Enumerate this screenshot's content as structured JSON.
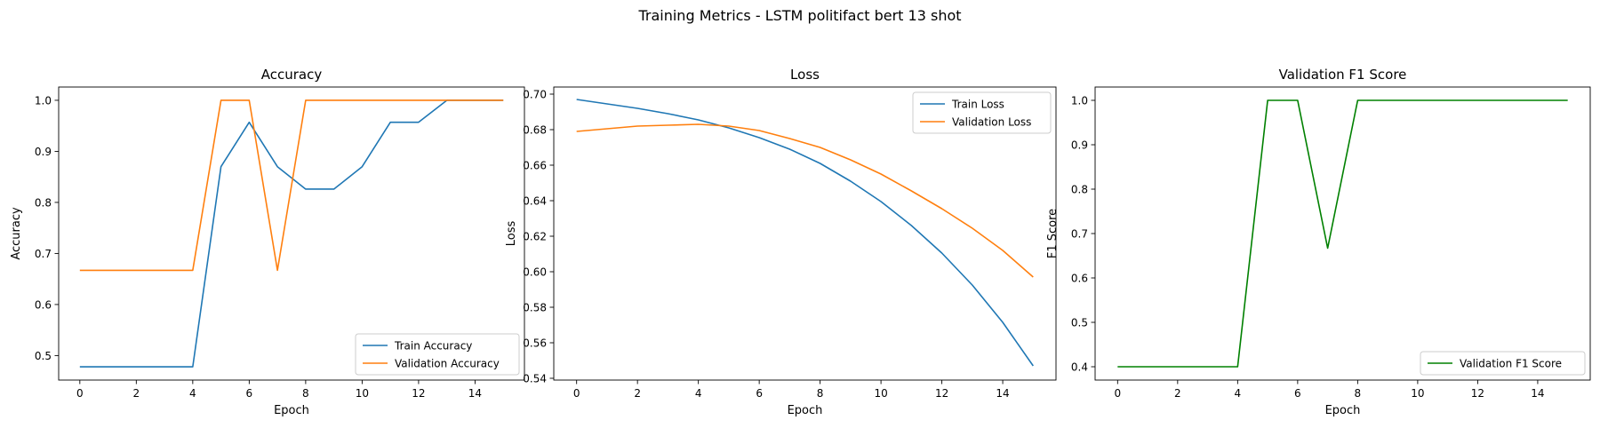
{
  "suptitle": "Training Metrics - LSTM politifact bert 13 shot",
  "chart_data": [
    {
      "type": "line",
      "title": "Accuracy",
      "xlabel": "Epoch",
      "ylabel": "Accuracy",
      "xlim": [
        -0.75,
        15.75
      ],
      "ylim": [
        0.452,
        1.026
      ],
      "xticks": [
        0,
        2,
        4,
        6,
        8,
        10,
        12,
        14
      ],
      "yticks": [
        0.5,
        0.6,
        0.7,
        0.8,
        0.9,
        1.0
      ],
      "ytick_labels": [
        "0.5",
        "0.6",
        "0.7",
        "0.8",
        "0.9",
        "1.0"
      ],
      "legend_position": "lower-right",
      "x": [
        0,
        1,
        2,
        3,
        4,
        5,
        6,
        7,
        8,
        9,
        10,
        11,
        12,
        13,
        14,
        15
      ],
      "series": [
        {
          "name": "Train Accuracy",
          "color": "#1f77b4",
          "values": [
            0.478,
            0.478,
            0.478,
            0.478,
            0.478,
            0.87,
            0.957,
            0.87,
            0.826,
            0.826,
            0.87,
            0.957,
            0.957,
            1.0,
            1.0,
            1.0
          ]
        },
        {
          "name": "Validation Accuracy",
          "color": "#ff7f0e",
          "values": [
            0.667,
            0.667,
            0.667,
            0.667,
            0.667,
            1.0,
            1.0,
            0.667,
            1.0,
            1.0,
            1.0,
            1.0,
            1.0,
            1.0,
            1.0,
            1.0
          ]
        }
      ]
    },
    {
      "type": "line",
      "title": "Loss",
      "xlabel": "Epoch",
      "ylabel": "Loss",
      "xlim": [
        -0.75,
        15.75
      ],
      "ylim": [
        0.539,
        0.704
      ],
      "xticks": [
        0,
        2,
        4,
        6,
        8,
        10,
        12,
        14
      ],
      "yticks": [
        0.54,
        0.56,
        0.58,
        0.6,
        0.62,
        0.64,
        0.66,
        0.68,
        0.7
      ],
      "ytick_labels": [
        "0.54",
        "0.56",
        "0.58",
        "0.60",
        "0.62",
        "0.64",
        "0.66",
        "0.68",
        "0.70"
      ],
      "legend_position": "upper-right",
      "x": [
        0,
        1,
        2,
        3,
        4,
        5,
        6,
        7,
        8,
        9,
        10,
        11,
        12,
        13,
        14,
        15
      ],
      "series": [
        {
          "name": "Train Loss",
          "color": "#1f77b4",
          "values": [
            0.697,
            0.6945,
            0.692,
            0.689,
            0.6855,
            0.681,
            0.6755,
            0.669,
            0.661,
            0.651,
            0.6395,
            0.626,
            0.6105,
            0.5925,
            0.5715,
            0.547
          ]
        },
        {
          "name": "Validation Loss",
          "color": "#ff7f0e",
          "values": [
            0.679,
            0.6805,
            0.682,
            0.6825,
            0.683,
            0.682,
            0.6795,
            0.675,
            0.67,
            0.663,
            0.655,
            0.6455,
            0.6355,
            0.6245,
            0.612,
            0.597
          ]
        }
      ]
    },
    {
      "type": "line",
      "title": "Validation F1 Score",
      "xlabel": "Epoch",
      "ylabel": "F1 Score",
      "xlim": [
        -0.75,
        15.75
      ],
      "ylim": [
        0.37,
        1.03
      ],
      "xticks": [
        0,
        2,
        4,
        6,
        8,
        10,
        12,
        14
      ],
      "yticks": [
        0.4,
        0.5,
        0.6,
        0.7,
        0.8,
        0.9,
        1.0
      ],
      "ytick_labels": [
        "0.4",
        "0.5",
        "0.6",
        "0.7",
        "0.8",
        "0.9",
        "1.0"
      ],
      "legend_position": "lower-right",
      "x": [
        0,
        1,
        2,
        3,
        4,
        5,
        6,
        7,
        8,
        9,
        10,
        11,
        12,
        13,
        14,
        15
      ],
      "series": [
        {
          "name": "Validation F1 Score",
          "color": "#008000",
          "values": [
            0.4,
            0.4,
            0.4,
            0.4,
            0.4,
            1.0,
            1.0,
            0.667,
            1.0,
            1.0,
            1.0,
            1.0,
            1.0,
            1.0,
            1.0,
            1.0
          ]
        }
      ]
    }
  ]
}
